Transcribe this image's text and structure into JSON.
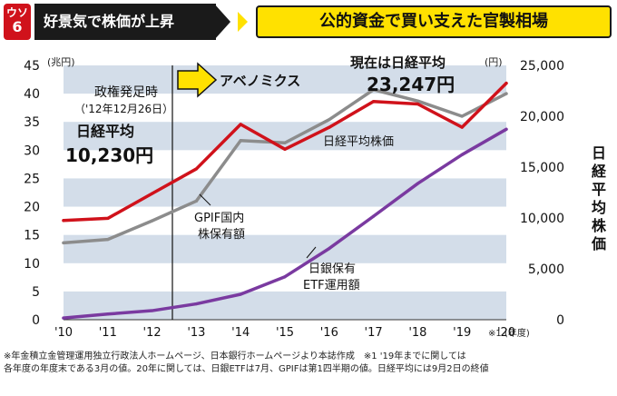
{
  "header": {
    "badge_top": "ウソ",
    "badge_number": "6",
    "left_title": "好景気で株価が上昇",
    "right_title": "公的資金で買い支えた官製相場"
  },
  "chart_data": {
    "type": "line",
    "categories": [
      "'10",
      "'11",
      "'12",
      "'13",
      "'14",
      "'15",
      "'16",
      "'17",
      "'18",
      "'19",
      "'20"
    ],
    "category_suffix": "※1 (年度)",
    "left_axis": {
      "unit": "(兆円)",
      "ticks": [
        0,
        5,
        10,
        15,
        20,
        25,
        30,
        35,
        40,
        45
      ],
      "ylim": [
        0,
        45
      ]
    },
    "right_axis": {
      "unit": "(円)",
      "label": "日経平均株価",
      "ticks": [
        "0",
        "5,000",
        "10,000",
        "15,000",
        "20,000",
        "25,000"
      ],
      "ylim": [
        0,
        25000
      ]
    },
    "series": [
      {
        "name": "日経平均株価",
        "axis": "right",
        "color": "#d0121b",
        "values": [
          9755,
          9962,
          12398,
          14828,
          19207,
          16759,
          18909,
          21454,
          21206,
          18917,
          23247
        ]
      },
      {
        "name": "GPIF国内株保有額",
        "axis": "left",
        "color": "#8c8c8c",
        "values": [
          13.6,
          14.2,
          17.5,
          21,
          31.7,
          31.3,
          35.4,
          40.7,
          38.7,
          36,
          40
        ]
      },
      {
        "name": "日銀保有ETF運用額",
        "axis": "left",
        "color": "#7a3aa0",
        "values": [
          0.3,
          1,
          1.6,
          2.8,
          4.5,
          7.6,
          12.6,
          18.3,
          24.1,
          29.2,
          33.7
        ]
      }
    ],
    "series_labels": {
      "nikkei": "日経平均株価",
      "gpif_line1": "GPIF国内",
      "gpif_line2": "株保有額",
      "boj_line1": "日銀保有",
      "boj_line2": "ETF運用額"
    },
    "annotations": {
      "start_label": "政権発足時",
      "start_date": "（'12年12月26日）",
      "start_index_label": "日経平均",
      "start_value": "10,230円",
      "abenomics": "アベノミクス",
      "current_label": "現在は日経平均",
      "current_value": "23,247円"
    },
    "grid": "horizontal bands",
    "legend": "none"
  },
  "footnotes": [
    "※年金積立金管理運用独立行政法人ホームページ、日本銀行ホームページより本誌作成　※1 '19年までに関しては",
    "各年度の年度末である3月の値。20年に関しては、日銀ETFは7月、GPIFは第1四半期の値。日経平均には9月2日の終値"
  ],
  "colors": {
    "accent_red": "#d0121b",
    "header_dark": "#1a1a1a",
    "header_yellow": "#ffe100",
    "band_blue": "#d3dde9",
    "gpif_gray": "#8c8c8c",
    "boj_purple": "#7a3aa0"
  }
}
